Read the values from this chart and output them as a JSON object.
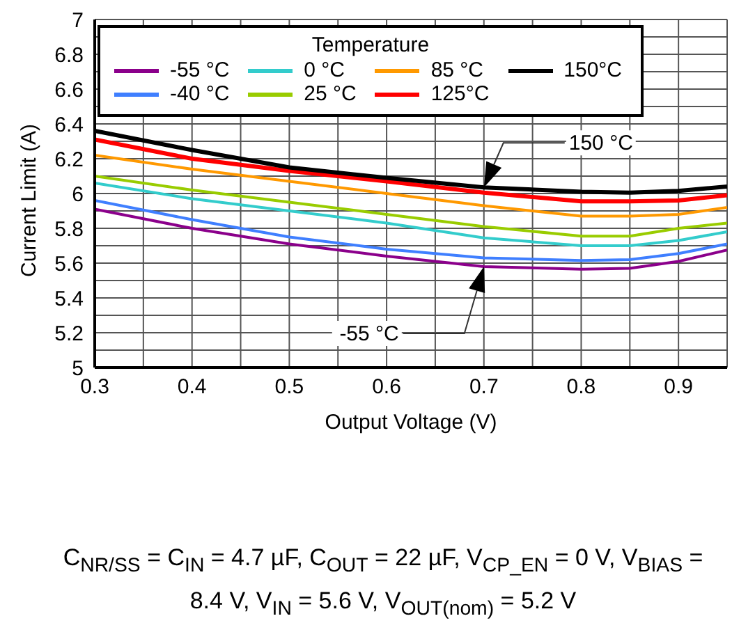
{
  "chart_data": {
    "type": "line",
    "xlabel": "Output Voltage (V)",
    "ylabel": "Current Limit (A)",
    "legend_title": "Temperature",
    "legend": "top left",
    "grid": true,
    "marker": "none",
    "line_style": "solid",
    "x": [
      0.3,
      0.4,
      0.5,
      0.6,
      0.7,
      0.8,
      0.85,
      0.9,
      0.95
    ],
    "xlim": [
      0.3,
      0.95
    ],
    "xticks": [
      0.3,
      {
        "value": 0.35,
        "label": null
      },
      0.4,
      {
        "value": 0.45,
        "label": null
      },
      0.5,
      {
        "value": 0.55,
        "label": null
      },
      0.6,
      {
        "value": 0.65,
        "label": null
      },
      0.7,
      {
        "value": 0.75,
        "label": null
      },
      0.8,
      {
        "value": 0.85,
        "label": null
      },
      0.9,
      {
        "value": 0.95,
        "label": null
      }
    ],
    "ylim": [
      5,
      7
    ],
    "yticks": [
      5,
      {
        "value": 5.1,
        "label": null
      },
      5.2,
      {
        "value": 5.3,
        "label": null
      },
      5.4,
      {
        "value": 5.5,
        "label": null
      },
      5.6,
      {
        "value": 5.7,
        "label": null
      },
      5.8,
      {
        "value": 5.9,
        "label": null
      },
      6,
      {
        "value": 6.1,
        "label": null
      },
      6.2,
      {
        "value": 6.3,
        "label": null
      },
      6.4,
      {
        "value": 6.5,
        "label": null
      },
      6.6,
      {
        "value": 6.7,
        "label": null
      },
      6.8,
      {
        "value": 6.9,
        "label": null
      },
      7
    ],
    "series": [
      {
        "name": "-55 °C",
        "color": "#8b008b",
        "values": [
          5.91,
          5.8,
          5.71,
          5.64,
          5.58,
          5.565,
          5.57,
          5.61,
          5.675
        ]
      },
      {
        "name": "-40 °C",
        "color": "#3f7fff",
        "values": [
          5.96,
          5.85,
          5.75,
          5.68,
          5.63,
          5.615,
          5.62,
          5.655,
          5.71
        ]
      },
      {
        "name": "0 °C",
        "color": "#33cccc",
        "values": [
          6.06,
          5.97,
          5.9,
          5.83,
          5.745,
          5.7,
          5.7,
          5.73,
          5.78
        ]
      },
      {
        "name": "25 °C",
        "color": "#99cc00",
        "values": [
          6.1,
          6.02,
          5.95,
          5.88,
          5.81,
          5.755,
          5.755,
          5.8,
          5.83
        ]
      },
      {
        "name": "85 °C",
        "color": "#ff9900",
        "values": [
          6.22,
          6.14,
          6.07,
          6,
          5.93,
          5.87,
          5.87,
          5.88,
          5.92
        ]
      },
      {
        "name": "125°C",
        "color": "#ff0000",
        "values": [
          6.31,
          6.2,
          6.13,
          6.07,
          6.005,
          5.955,
          5.955,
          5.96,
          5.99
        ]
      },
      {
        "name": "150°C",
        "color": "#000000",
        "values": [
          6.36,
          6.25,
          6.15,
          6.09,
          6.035,
          6.01,
          6.005,
          6.015,
          6.04
        ]
      }
    ],
    "annotations": [
      "150 °C",
      "-55 °C",
      "C$_{NR/SS}$ = C$_{IN}$ = 4.7 µF, C$_{OUT}$ = 22 µF, V$_{CP_EN}$ = 0 V, V$_{BIAS}$ = 8.4 V, V$_{IN}$ = 5.6 V, V$_{OUT(nom)}$ = 5.2 V"
    ]
  }
}
